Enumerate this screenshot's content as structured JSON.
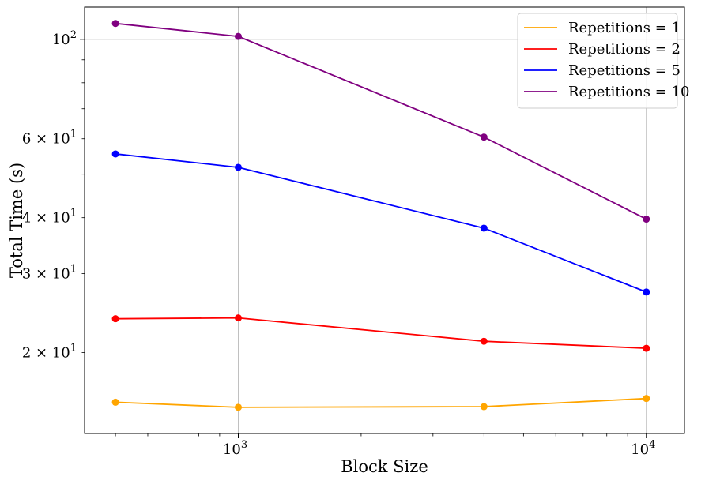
{
  "chart_data": {
    "type": "line",
    "xlabel": "Block Size",
    "ylabel": "Total Time (s)",
    "xscale": "log",
    "yscale": "log",
    "xlim": [
      420,
      12400
    ],
    "ylim": [
      13.2,
      118
    ],
    "grid": "major",
    "legend_position": "top-right",
    "x": [
      500,
      1000,
      4000,
      10000
    ],
    "x_ticks": [
      {
        "value": 1000,
        "base": "10",
        "exp": "3"
      },
      {
        "value": 10000,
        "base": "10",
        "exp": "4"
      }
    ],
    "y_ticks": [
      {
        "value": 20,
        "mant": "2 × 10",
        "exp": "1"
      },
      {
        "value": 30,
        "mant": "3 × 10",
        "exp": "1"
      },
      {
        "value": 40,
        "mant": "4 × 10",
        "exp": "1"
      },
      {
        "value": 60,
        "mant": "6 × 10",
        "exp": "1"
      },
      {
        "value": 100,
        "mant": "10",
        "exp": "2"
      }
    ],
    "series": [
      {
        "name": "Repetitions = 1",
        "color": "#ffa500",
        "values": [
          15.5,
          15.1,
          15.15,
          15.8
        ]
      },
      {
        "name": "Repetitions = 2",
        "color": "#ff0000",
        "values": [
          23.8,
          23.9,
          21.2,
          20.45
        ]
      },
      {
        "name": "Repetitions = 5",
        "color": "#0000ff",
        "values": [
          55.5,
          51.8,
          37.9,
          27.3
        ]
      },
      {
        "name": "Repetitions = 10",
        "color": "#800080",
        "values": [
          108.5,
          101.5,
          60.5,
          39.7
        ]
      }
    ]
  }
}
